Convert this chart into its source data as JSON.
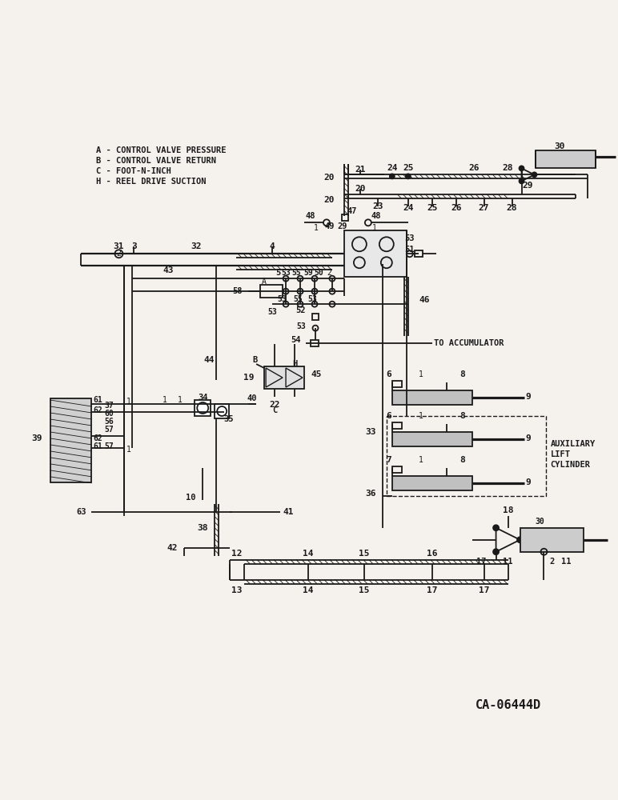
{
  "bg": "#f5f2ee",
  "lc": "#1a1a1a",
  "legend": [
    "A - CONTROL VALVE PRESSURE",
    "B - CONTROL VALVE RETURN",
    "C - FOOT-N-INCH",
    "H - REEL DRIVE SUCTION"
  ],
  "catalog": "CA-06444D"
}
